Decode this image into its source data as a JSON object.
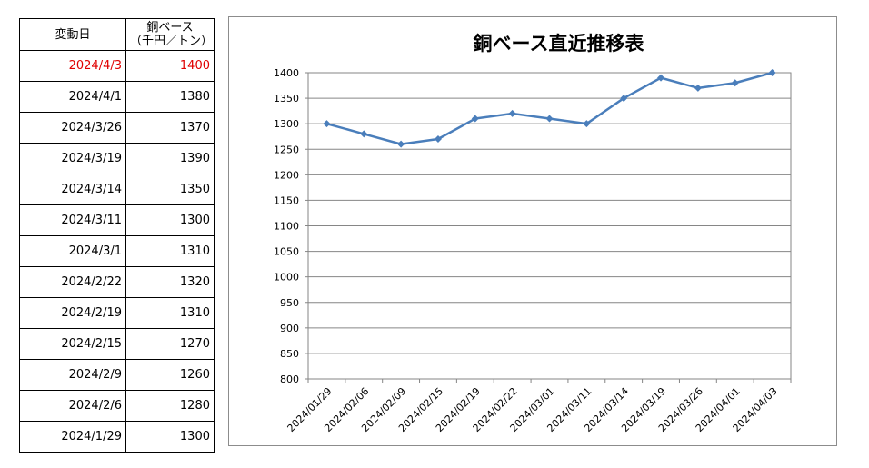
{
  "table": {
    "header_date": "変動日",
    "header_price_line1": "銅ベース",
    "header_price_line2": "（千円／トン）",
    "rows": [
      {
        "date": "2024/4/3",
        "price": "1400"
      },
      {
        "date": "2024/4/1",
        "price": "1380"
      },
      {
        "date": "2024/3/26",
        "price": "1370"
      },
      {
        "date": "2024/3/19",
        "price": "1390"
      },
      {
        "date": "2024/3/14",
        "price": "1350"
      },
      {
        "date": "2024/3/11",
        "price": "1300"
      },
      {
        "date": "2024/3/1",
        "price": "1310"
      },
      {
        "date": "2024/2/22",
        "price": "1320"
      },
      {
        "date": "2024/2/19",
        "price": "1310"
      },
      {
        "date": "2024/2/15",
        "price": "1270"
      },
      {
        "date": "2024/2/9",
        "price": "1260"
      },
      {
        "date": "2024/2/6",
        "price": "1280"
      },
      {
        "date": "2024/1/29",
        "price": "1300"
      }
    ],
    "highlight_color": "#e00000"
  },
  "chart_data": {
    "type": "line",
    "title": "銅ベース直近推移表",
    "xlabel": "",
    "ylabel": "",
    "categories": [
      "2024/01/29",
      "2024/02/06",
      "2024/02/09",
      "2024/02/15",
      "2024/02/19",
      "2024/02/22",
      "2024/03/01",
      "2024/03/11",
      "2024/03/14",
      "2024/03/19",
      "2024/03/26",
      "2024/04/01",
      "2024/04/03"
    ],
    "series": [
      {
        "values": [
          1300,
          1280,
          1260,
          1270,
          1310,
          1320,
          1310,
          1300,
          1350,
          1390,
          1370,
          1380,
          1400
        ],
        "color": "#4a7ebb",
        "marker": "diamond"
      }
    ],
    "ylim": [
      800,
      1400
    ],
    "yticks": [
      800,
      850,
      900,
      950,
      1000,
      1050,
      1100,
      1150,
      1200,
      1250,
      1300,
      1350,
      1400
    ],
    "grid": true,
    "legend": "none"
  }
}
